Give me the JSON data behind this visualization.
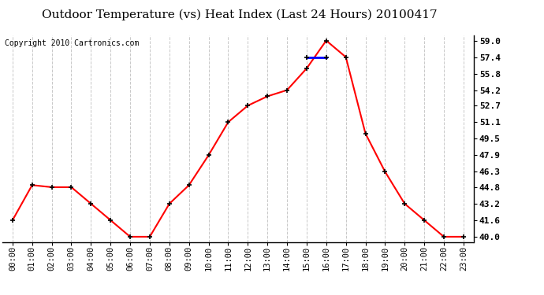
{
  "title": "Outdoor Temperature (vs) Heat Index (Last 24 Hours) 20100417",
  "copyright": "Copyright 2010 Cartronics.com",
  "x_labels": [
    "00:00",
    "01:00",
    "02:00",
    "03:00",
    "04:00",
    "05:00",
    "06:00",
    "07:00",
    "08:00",
    "09:00",
    "10:00",
    "11:00",
    "12:00",
    "13:00",
    "14:00",
    "15:00",
    "16:00",
    "17:00",
    "18:00",
    "19:00",
    "20:00",
    "21:00",
    "22:00",
    "23:00"
  ],
  "temp_values": [
    41.6,
    45.0,
    44.8,
    44.8,
    43.2,
    41.6,
    40.0,
    40.0,
    43.2,
    45.0,
    47.9,
    51.1,
    52.7,
    53.6,
    54.2,
    56.3,
    59.0,
    57.4,
    50.0,
    46.3,
    43.2,
    41.6,
    40.0,
    40.0
  ],
  "heat_values": [
    null,
    null,
    null,
    null,
    null,
    null,
    null,
    null,
    null,
    null,
    null,
    null,
    null,
    null,
    null,
    57.4,
    57.4,
    null,
    null,
    null,
    null,
    null,
    null,
    null
  ],
  "ylim": [
    39.5,
    59.5
  ],
  "yticks": [
    40.0,
    41.6,
    43.2,
    44.8,
    46.3,
    47.9,
    49.5,
    51.1,
    52.7,
    54.2,
    55.8,
    57.4,
    59.0
  ],
  "temp_color": "#FF0000",
  "heat_color": "#0000FF",
  "marker_color": "#000000",
  "grid_color": "#C8C8C8",
  "bg_color": "#FFFFFF",
  "title_fontsize": 11,
  "copyright_fontsize": 7,
  "tick_fontsize": 7.5,
  "ytick_fontsize": 8
}
